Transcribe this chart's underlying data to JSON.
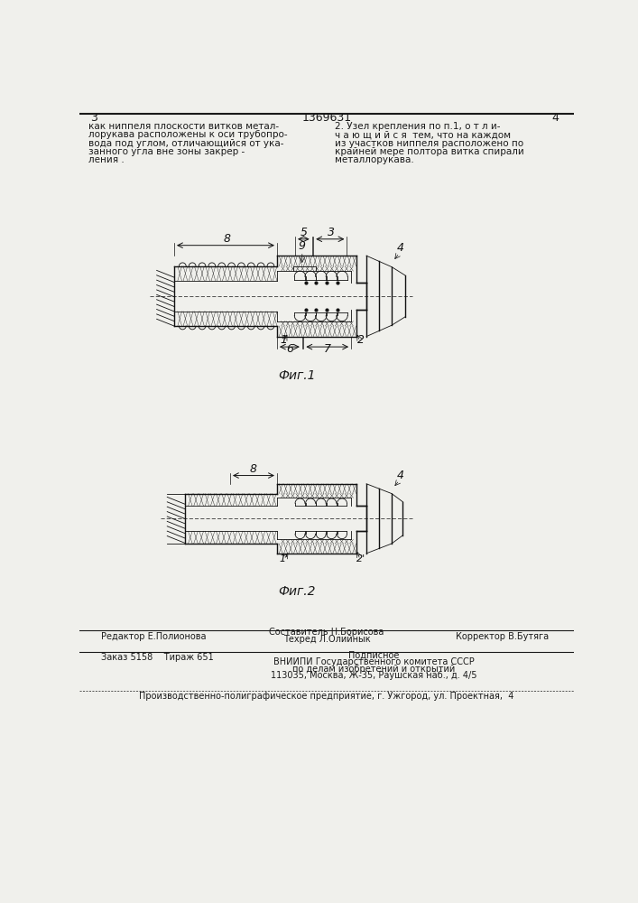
{
  "bg_color": "#f0f0ec",
  "text_color": "#1a1a1a",
  "page_width": 7.07,
  "page_height": 10.0,
  "header_text_left": "как ниппеля плоскости витков метал-\nлорукава расположены к оси трубопро-\nвода под углом, отличающийся от ука-\nзанного угла вне зоны закрep -\nления .",
  "header_num_left": "3",
  "header_num_center": "1369631",
  "header_num_right": "4",
  "header_text_right": "2. Узел крепления по п.1, о т л и-\nч а ю щ и й с я  тем, что на каждом\nиз участков ниппеля расположено по\nкрайней мере полтора витка спирали\nметаллорукава.",
  "fig1_caption": "Фиг.1",
  "fig2_caption": "Фиг.2",
  "footer_line1_left": "Редактор Е.Полионова",
  "footer_line1_center_top": "Составитель Н.Борисова",
  "footer_line1_center_bot": "Техред Л.Олийнык",
  "footer_line1_right": "Корректор В.Бутяга",
  "footer_line2_left": "Заказ 5158    Тираж 651",
  "footer_line2_c1": "Подписное",
  "footer_line2_c2": "ВНИИПИ Государственного комитета СССР",
  "footer_line2_c3": "по делам изобретений и открытий",
  "footer_line2_c4": "113035, Москва, Ж-35, Раушская наб., д. 4/5",
  "footer_line3": "Производственно-полиграфическое предприятие, г. Ужгород, ул. Проектная,  4"
}
